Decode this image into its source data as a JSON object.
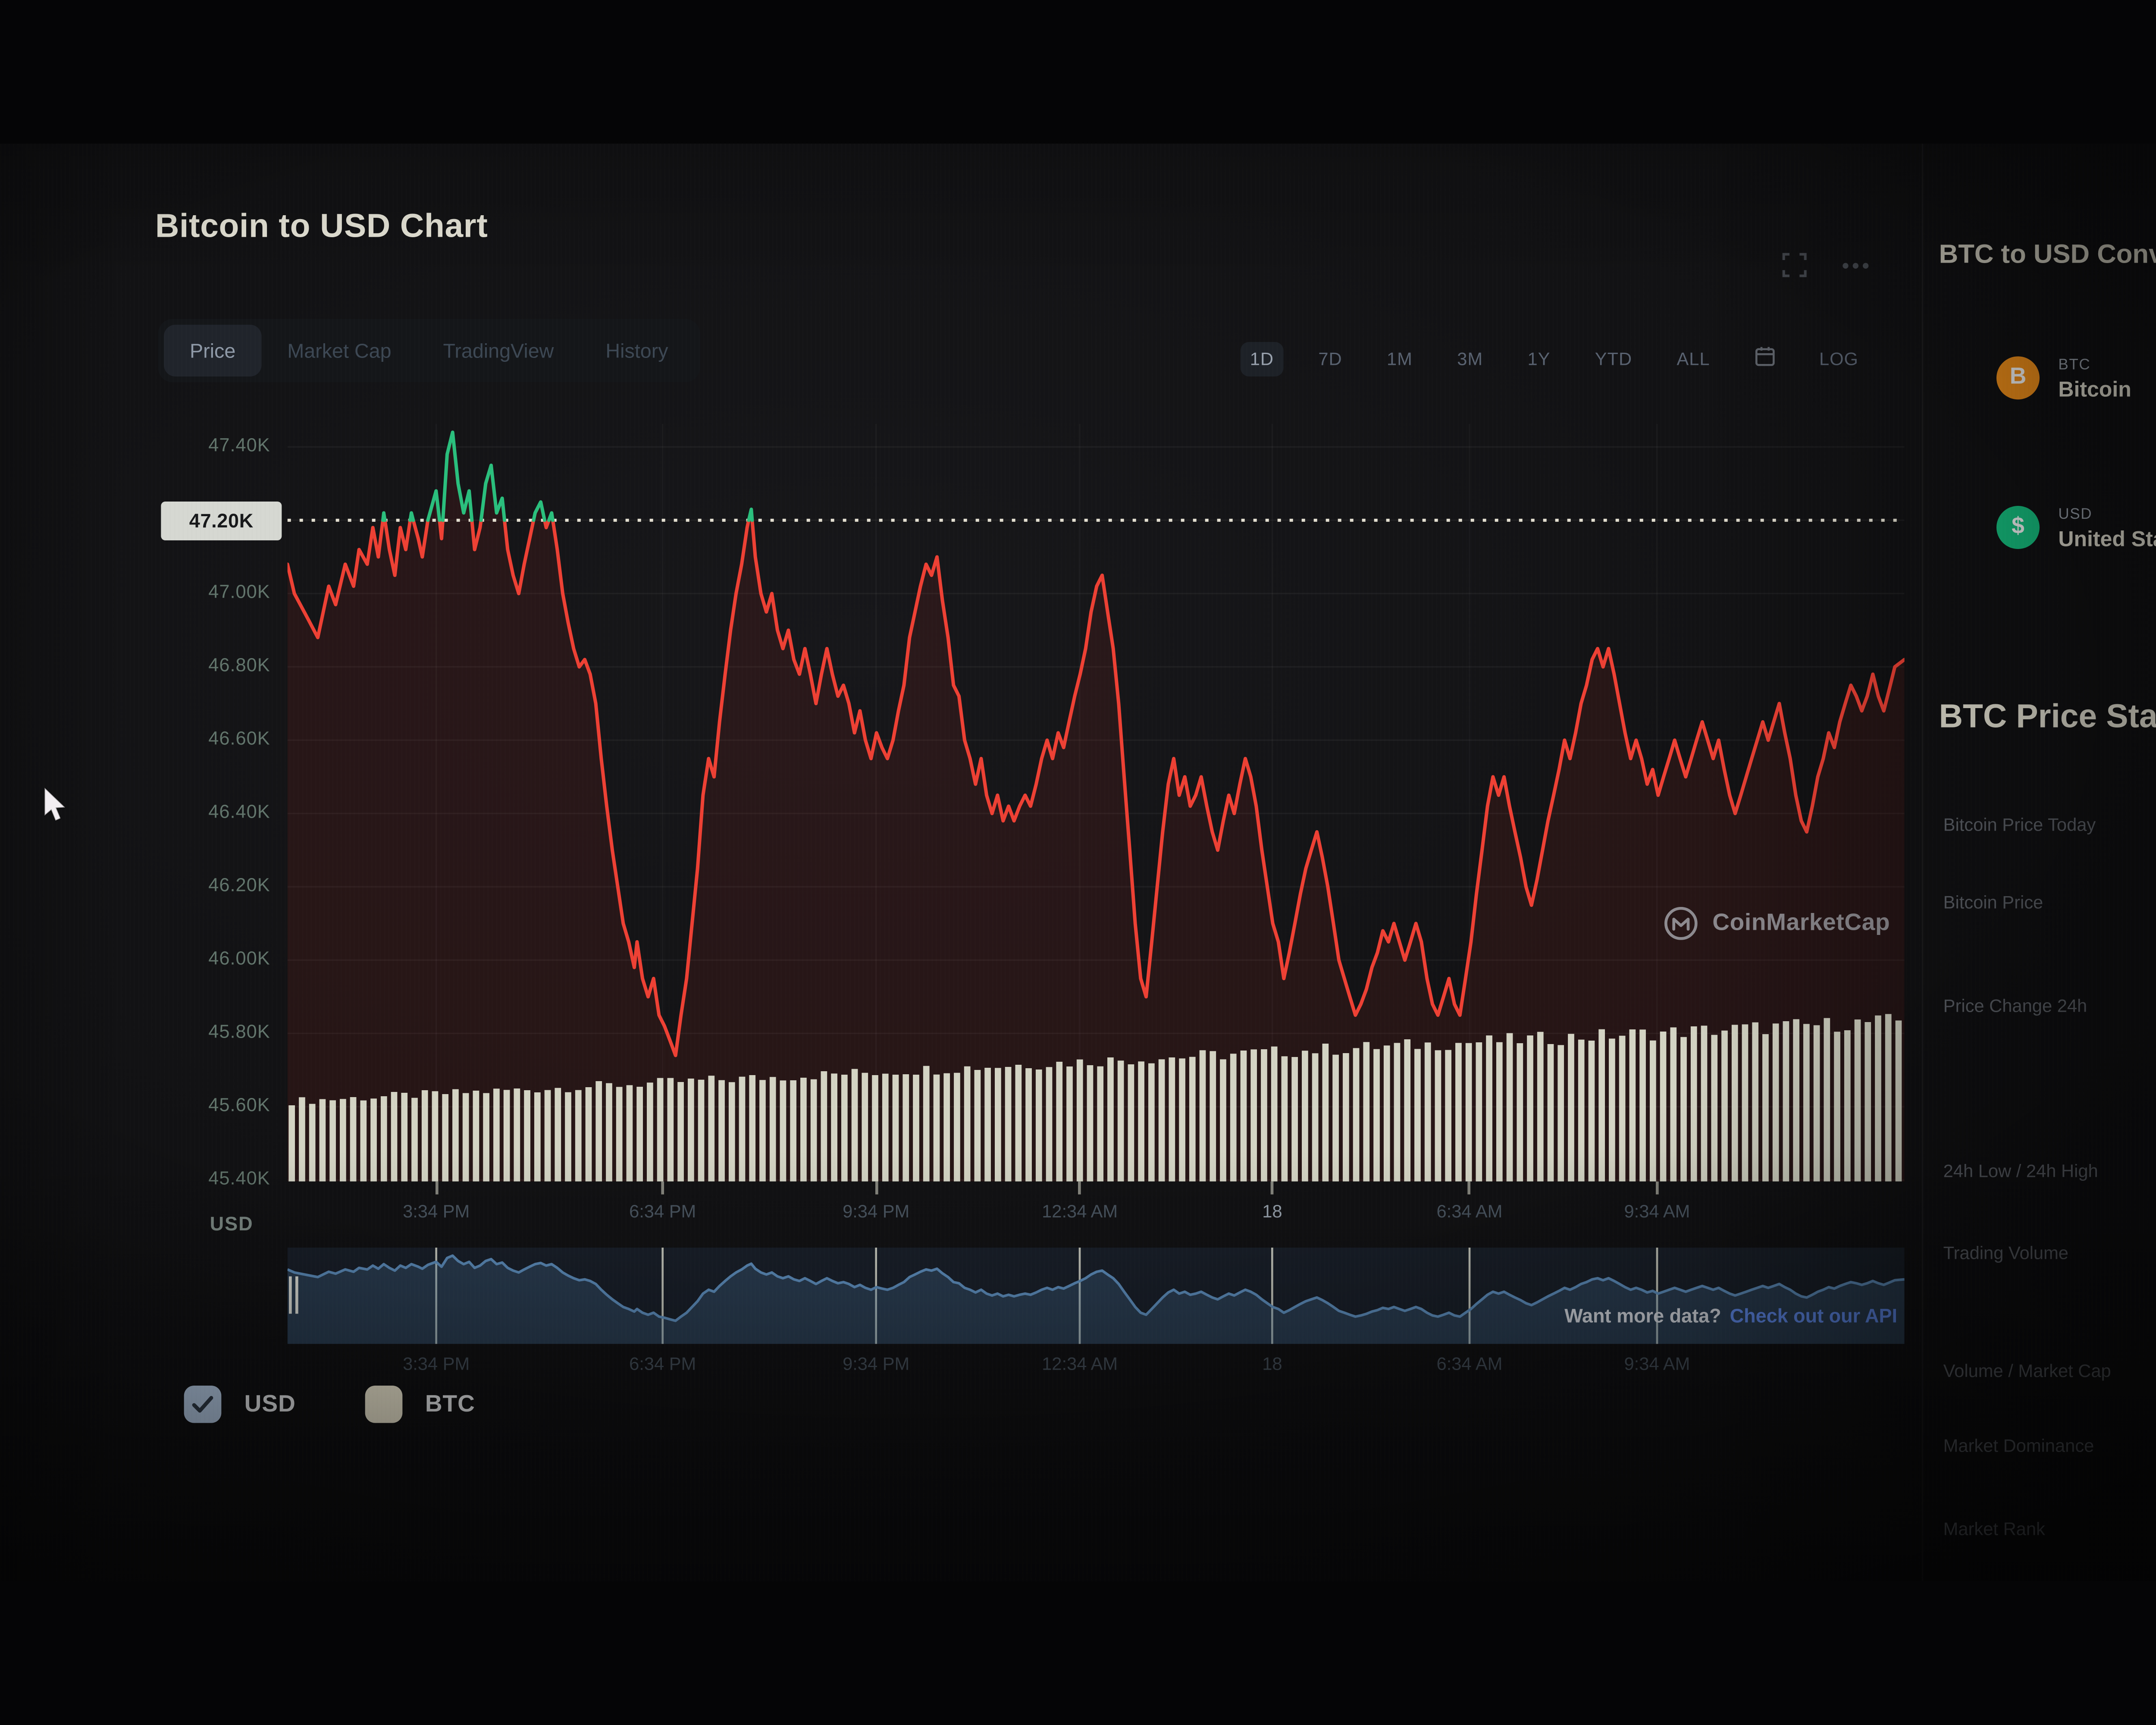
{
  "window": {
    "title": "Bitcoin to USD Chart"
  },
  "toolbar": {
    "tabs": [
      {
        "label": "Price",
        "selected": true
      },
      {
        "label": "Market Cap",
        "selected": false
      },
      {
        "label": "TradingView",
        "selected": false
      },
      {
        "label": "History",
        "selected": false
      }
    ],
    "ranges": {
      "items": [
        "1D",
        "7D",
        "1M",
        "3M",
        "1Y",
        "YTD",
        "ALL"
      ],
      "selected": "1D",
      "log_label": "LOG"
    }
  },
  "legend": {
    "items": [
      {
        "label": "USD",
        "swatch": "#b9cfe9",
        "check_visible": true
      },
      {
        "label": "BTC",
        "swatch": "#efe9d2",
        "check_visible": false
      }
    ]
  },
  "watermark": {
    "text": "CoinMarketCap"
  },
  "cta": {
    "text": "Want more data?",
    "link_text": "Check out our API"
  },
  "sidebar": {
    "converter_title": "BTC to USD Converter",
    "coins": [
      {
        "symbol": "BTC",
        "name": "Bitcoin",
        "color": "#f7931a"
      },
      {
        "symbol": "USD",
        "name": "United States Dollar",
        "color": "#16c784"
      }
    ],
    "stats_title": "BTC Price Statistics",
    "stats_rows": [
      "Bitcoin Price Today",
      "Bitcoin Price",
      "Price Change 24h",
      "24h Low / 24h High",
      "Trading Volume",
      "Volume / Market Cap",
      "Market Dominance",
      "Market Rank"
    ]
  },
  "chart_data": {
    "type": "line",
    "title": "Bitcoin to USD Chart",
    "unit_label": "USD",
    "ylim": [
      45400,
      47400
    ],
    "y_ticks": [
      {
        "label": "47.40K",
        "value": 47400
      },
      {
        "label": "47.20K",
        "value": 47200,
        "badge": true
      },
      {
        "label": "47.00K",
        "value": 47000
      },
      {
        "label": "46.80K",
        "value": 46800
      },
      {
        "label": "46.60K",
        "value": 46600
      },
      {
        "label": "46.40K",
        "value": 46400
      },
      {
        "label": "46.20K",
        "value": 46200
      },
      {
        "label": "46.00K",
        "value": 46000
      },
      {
        "label": "45.80K",
        "value": 45800
      },
      {
        "label": "45.60K",
        "value": 45600
      },
      {
        "label": "45.40K",
        "value": 45400
      }
    ],
    "threshold": {
      "value": 47200,
      "label": "47.20K"
    },
    "x_ticks": [
      {
        "label": "3:34 PM",
        "f": 0.092
      },
      {
        "label": "6:34 PM",
        "f": 0.232
      },
      {
        "label": "9:34 PM",
        "f": 0.364
      },
      {
        "label": "12:34 AM",
        "f": 0.49
      },
      {
        "label": "18",
        "f": 0.609,
        "highlight": true
      },
      {
        "label": "6:34 AM",
        "f": 0.731
      },
      {
        "label": "9:34 AM",
        "f": 0.847
      }
    ],
    "series": {
      "name": "BTC/USD",
      "color_up": "#2abf7d",
      "color_down": "#ee4134",
      "x_domain": [
        0,
        1175
      ],
      "points": [
        [
          0,
          47080
        ],
        [
          5,
          47000
        ],
        [
          15,
          46930
        ],
        [
          22,
          46880
        ],
        [
          30,
          47020
        ],
        [
          35,
          46970
        ],
        [
          42,
          47080
        ],
        [
          48,
          47020
        ],
        [
          52,
          47120
        ],
        [
          58,
          47080
        ],
        [
          62,
          47180
        ],
        [
          66,
          47100
        ],
        [
          70,
          47220
        ],
        [
          74,
          47120
        ],
        [
          78,
          47050
        ],
        [
          82,
          47180
        ],
        [
          86,
          47120
        ],
        [
          90,
          47220
        ],
        [
          95,
          47150
        ],
        [
          98,
          47100
        ],
        [
          102,
          47200
        ],
        [
          108,
          47280
        ],
        [
          112,
          47150
        ],
        [
          116,
          47380
        ],
        [
          120,
          47440
        ],
        [
          124,
          47300
        ],
        [
          128,
          47220
        ],
        [
          132,
          47280
        ],
        [
          136,
          47120
        ],
        [
          140,
          47180
        ],
        [
          144,
          47300
        ],
        [
          148,
          47350
        ],
        [
          152,
          47220
        ],
        [
          156,
          47260
        ],
        [
          160,
          47120
        ],
        [
          164,
          47050
        ],
        [
          168,
          47000
        ],
        [
          172,
          47080
        ],
        [
          176,
          47150
        ],
        [
          180,
          47220
        ],
        [
          184,
          47250
        ],
        [
          188,
          47180
        ],
        [
          192,
          47220
        ],
        [
          196,
          47120
        ],
        [
          200,
          47000
        ],
        [
          204,
          46920
        ],
        [
          208,
          46850
        ],
        [
          212,
          46800
        ],
        [
          216,
          46820
        ],
        [
          220,
          46780
        ],
        [
          224,
          46700
        ],
        [
          228,
          46550
        ],
        [
          232,
          46420
        ],
        [
          236,
          46300
        ],
        [
          240,
          46200
        ],
        [
          244,
          46100
        ],
        [
          248,
          46050
        ],
        [
          252,
          45980
        ],
        [
          254,
          46050
        ],
        [
          258,
          45950
        ],
        [
          262,
          45900
        ],
        [
          266,
          45950
        ],
        [
          270,
          45850
        ],
        [
          274,
          45820
        ],
        [
          278,
          45780
        ],
        [
          282,
          45740
        ],
        [
          286,
          45850
        ],
        [
          290,
          45950
        ],
        [
          294,
          46100
        ],
        [
          298,
          46250
        ],
        [
          302,
          46450
        ],
        [
          306,
          46550
        ],
        [
          310,
          46500
        ],
        [
          314,
          46650
        ],
        [
          318,
          46780
        ],
        [
          322,
          46900
        ],
        [
          326,
          47000
        ],
        [
          330,
          47080
        ],
        [
          334,
          47180
        ],
        [
          337,
          47230
        ],
        [
          340,
          47100
        ],
        [
          344,
          47000
        ],
        [
          348,
          46950
        ],
        [
          352,
          47000
        ],
        [
          356,
          46900
        ],
        [
          360,
          46850
        ],
        [
          364,
          46900
        ],
        [
          368,
          46820
        ],
        [
          372,
          46780
        ],
        [
          376,
          46850
        ],
        [
          380,
          46780
        ],
        [
          384,
          46700
        ],
        [
          388,
          46780
        ],
        [
          392,
          46850
        ],
        [
          396,
          46780
        ],
        [
          400,
          46720
        ],
        [
          404,
          46750
        ],
        [
          408,
          46700
        ],
        [
          412,
          46620
        ],
        [
          416,
          46680
        ],
        [
          420,
          46600
        ],
        [
          424,
          46550
        ],
        [
          428,
          46620
        ],
        [
          432,
          46580
        ],
        [
          436,
          46550
        ],
        [
          440,
          46600
        ],
        [
          444,
          46680
        ],
        [
          448,
          46750
        ],
        [
          452,
          46880
        ],
        [
          456,
          46950
        ],
        [
          460,
          47020
        ],
        [
          464,
          47080
        ],
        [
          468,
          47050
        ],
        [
          472,
          47100
        ],
        [
          476,
          46980
        ],
        [
          480,
          46880
        ],
        [
          484,
          46750
        ],
        [
          488,
          46720
        ],
        [
          492,
          46600
        ],
        [
          496,
          46550
        ],
        [
          500,
          46480
        ],
        [
          504,
          46550
        ],
        [
          508,
          46450
        ],
        [
          512,
          46400
        ],
        [
          516,
          46450
        ],
        [
          520,
          46380
        ],
        [
          524,
          46420
        ],
        [
          528,
          46380
        ],
        [
          532,
          46420
        ],
        [
          536,
          46450
        ],
        [
          540,
          46420
        ],
        [
          544,
          46480
        ],
        [
          548,
          46550
        ],
        [
          552,
          46600
        ],
        [
          556,
          46550
        ],
        [
          560,
          46620
        ],
        [
          564,
          46580
        ],
        [
          568,
          46650
        ],
        [
          572,
          46720
        ],
        [
          576,
          46780
        ],
        [
          580,
          46850
        ],
        [
          584,
          46950
        ],
        [
          588,
          47020
        ],
        [
          592,
          47050
        ],
        [
          596,
          46950
        ],
        [
          600,
          46850
        ],
        [
          604,
          46700
        ],
        [
          608,
          46500
        ],
        [
          612,
          46300
        ],
        [
          616,
          46100
        ],
        [
          620,
          45950
        ],
        [
          624,
          45900
        ],
        [
          628,
          46050
        ],
        [
          632,
          46200
        ],
        [
          636,
          46350
        ],
        [
          640,
          46480
        ],
        [
          644,
          46550
        ],
        [
          648,
          46450
        ],
        [
          652,
          46500
        ],
        [
          656,
          46420
        ],
        [
          660,
          46450
        ],
        [
          664,
          46500
        ],
        [
          668,
          46420
        ],
        [
          672,
          46350
        ],
        [
          676,
          46300
        ],
        [
          680,
          46380
        ],
        [
          684,
          46450
        ],
        [
          688,
          46400
        ],
        [
          692,
          46480
        ],
        [
          696,
          46550
        ],
        [
          700,
          46500
        ],
        [
          704,
          46420
        ],
        [
          708,
          46300
        ],
        [
          712,
          46200
        ],
        [
          716,
          46100
        ],
        [
          720,
          46050
        ],
        [
          724,
          45950
        ],
        [
          728,
          46020
        ],
        [
          732,
          46100
        ],
        [
          736,
          46180
        ],
        [
          740,
          46250
        ],
        [
          744,
          46300
        ],
        [
          748,
          46350
        ],
        [
          752,
          46280
        ],
        [
          756,
          46200
        ],
        [
          760,
          46100
        ],
        [
          764,
          46000
        ],
        [
          768,
          45950
        ],
        [
          772,
          45900
        ],
        [
          776,
          45850
        ],
        [
          780,
          45880
        ],
        [
          784,
          45920
        ],
        [
          788,
          45980
        ],
        [
          792,
          46020
        ],
        [
          796,
          46080
        ],
        [
          800,
          46050
        ],
        [
          804,
          46100
        ],
        [
          808,
          46050
        ],
        [
          812,
          46000
        ],
        [
          816,
          46050
        ],
        [
          820,
          46100
        ],
        [
          824,
          46050
        ],
        [
          828,
          45950
        ],
        [
          832,
          45880
        ],
        [
          836,
          45850
        ],
        [
          840,
          45900
        ],
        [
          844,
          45950
        ],
        [
          848,
          45880
        ],
        [
          852,
          45850
        ],
        [
          856,
          45950
        ],
        [
          860,
          46050
        ],
        [
          864,
          46180
        ],
        [
          868,
          46300
        ],
        [
          872,
          46420
        ],
        [
          876,
          46500
        ],
        [
          880,
          46450
        ],
        [
          884,
          46500
        ],
        [
          888,
          46420
        ],
        [
          892,
          46350
        ],
        [
          896,
          46280
        ],
        [
          900,
          46200
        ],
        [
          904,
          46150
        ],
        [
          908,
          46220
        ],
        [
          912,
          46300
        ],
        [
          916,
          46380
        ],
        [
          920,
          46450
        ],
        [
          924,
          46520
        ],
        [
          928,
          46600
        ],
        [
          932,
          46550
        ],
        [
          936,
          46620
        ],
        [
          940,
          46700
        ],
        [
          944,
          46750
        ],
        [
          948,
          46820
        ],
        [
          952,
          46850
        ],
        [
          956,
          46800
        ],
        [
          960,
          46850
        ],
        [
          964,
          46780
        ],
        [
          968,
          46700
        ],
        [
          972,
          46620
        ],
        [
          976,
          46550
        ],
        [
          980,
          46600
        ],
        [
          984,
          46550
        ],
        [
          988,
          46480
        ],
        [
          992,
          46520
        ],
        [
          996,
          46450
        ],
        [
          1000,
          46500
        ],
        [
          1004,
          46550
        ],
        [
          1008,
          46600
        ],
        [
          1012,
          46550
        ],
        [
          1016,
          46500
        ],
        [
          1020,
          46550
        ],
        [
          1024,
          46600
        ],
        [
          1028,
          46650
        ],
        [
          1032,
          46600
        ],
        [
          1036,
          46550
        ],
        [
          1040,
          46600
        ],
        [
          1044,
          46520
        ],
        [
          1048,
          46450
        ],
        [
          1052,
          46400
        ],
        [
          1056,
          46450
        ],
        [
          1060,
          46500
        ],
        [
          1064,
          46550
        ],
        [
          1068,
          46600
        ],
        [
          1072,
          46650
        ],
        [
          1076,
          46600
        ],
        [
          1080,
          46650
        ],
        [
          1084,
          46700
        ],
        [
          1088,
          46620
        ],
        [
          1092,
          46550
        ],
        [
          1096,
          46450
        ],
        [
          1100,
          46380
        ],
        [
          1104,
          46350
        ],
        [
          1108,
          46420
        ],
        [
          1112,
          46500
        ],
        [
          1116,
          46550
        ],
        [
          1120,
          46620
        ],
        [
          1124,
          46580
        ],
        [
          1128,
          46650
        ],
        [
          1132,
          46700
        ],
        [
          1136,
          46750
        ],
        [
          1140,
          46720
        ],
        [
          1144,
          46680
        ],
        [
          1148,
          46720
        ],
        [
          1152,
          46780
        ],
        [
          1156,
          46720
        ],
        [
          1160,
          46680
        ],
        [
          1164,
          46740
        ],
        [
          1168,
          46800
        ],
        [
          1175,
          46820
        ]
      ]
    },
    "volume": {
      "bars": 158,
      "color": "#e3e5d4"
    },
    "navigator": {
      "line_color": "#5b8ab8",
      "fill_color": "rgba(80,125,170,0.30)",
      "grid_color": "rgba(236,236,220,0.8)"
    },
    "legend_position": "bottom-left",
    "grid": true
  }
}
